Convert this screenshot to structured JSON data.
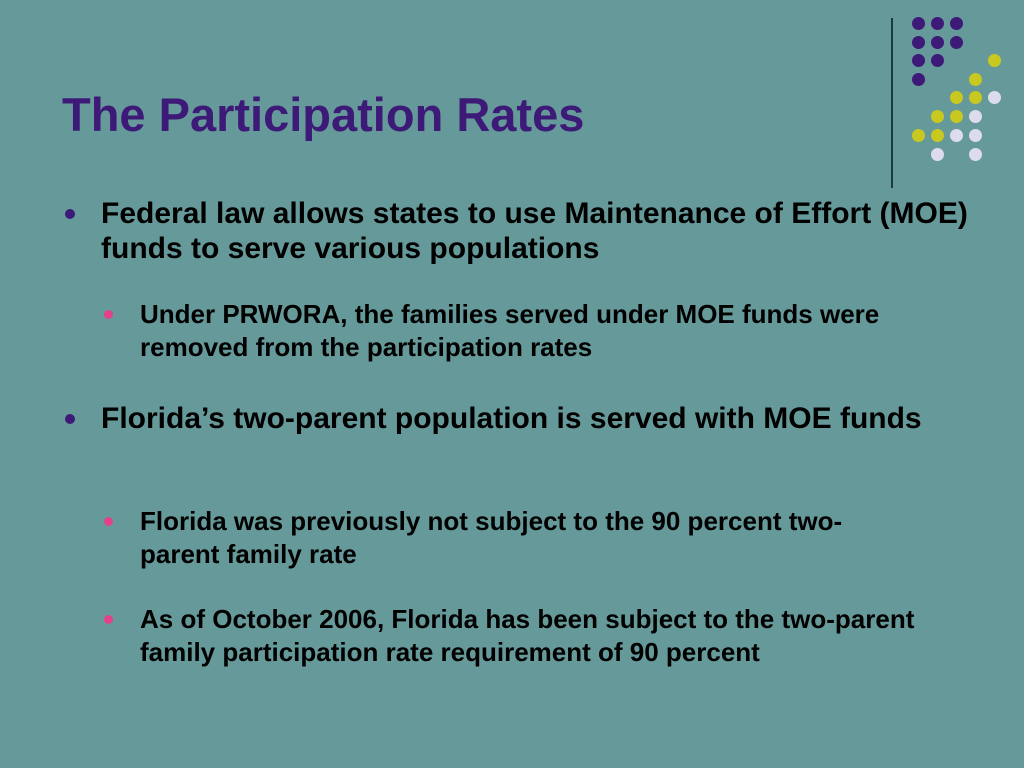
{
  "slide": {
    "title": "The Participation Rates",
    "bullets": [
      {
        "level": 1,
        "text": "Federal law allows states to use  Maintenance of Effort (MOE) funds to serve various populations"
      },
      {
        "level": 2,
        "text": "Under PRWORA, the families served under MOE funds were removed from the participation rates"
      },
      {
        "level": 1,
        "text": "Florida’s two-parent population is served with MOE funds"
      },
      {
        "level": 2,
        "text": "Florida was previously not subject to the 90 percent two-parent family rate"
      },
      {
        "level": 2,
        "text": "As of October 2006, Florida has been subject to the two-parent family participation rate requirement of 90 percent"
      }
    ]
  },
  "colors": {
    "background": "#669999",
    "title": "#3d1a78",
    "level1_bullet": "#3d1a78",
    "level2_bullet": "#e4418a",
    "dot_purple": "#3d1a78",
    "dot_yellow": "#c8c820",
    "dot_light": "#dcdcec"
  }
}
